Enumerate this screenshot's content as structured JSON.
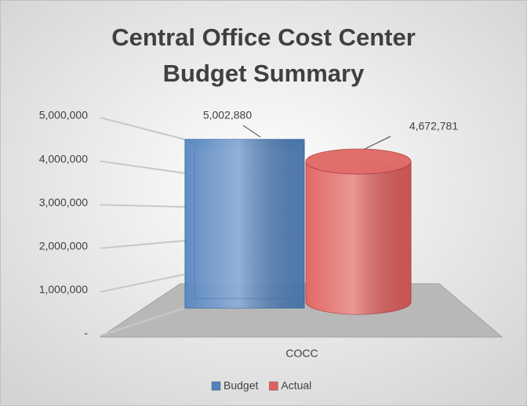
{
  "chart_data": {
    "type": "bar3d",
    "title": "Central Office Cost Center",
    "subtitle": "Budget Summary",
    "categories": [
      "COCC"
    ],
    "series": [
      {
        "name": "Budget",
        "color": "#4f81bd",
        "shape": "box",
        "values": [
          5002880
        ],
        "value_labels": [
          "5,002,880"
        ]
      },
      {
        "name": "Actual",
        "color": "#e0605c",
        "shape": "cylinder",
        "values": [
          4672781
        ],
        "value_labels": [
          "4,672,781"
        ]
      }
    ],
    "ylim": [
      0,
      5000000
    ],
    "yticks": [
      {
        "value": 0,
        "label": "-"
      },
      {
        "value": 1000000,
        "label": "1,000,000"
      },
      {
        "value": 2000000,
        "label": "2,000,000"
      },
      {
        "value": 3000000,
        "label": "3,000,000"
      },
      {
        "value": 4000000,
        "label": "4,000,000"
      },
      {
        "value": 5000000,
        "label": "5,000,000"
      }
    ],
    "grid": true,
    "legend": "bottom"
  }
}
